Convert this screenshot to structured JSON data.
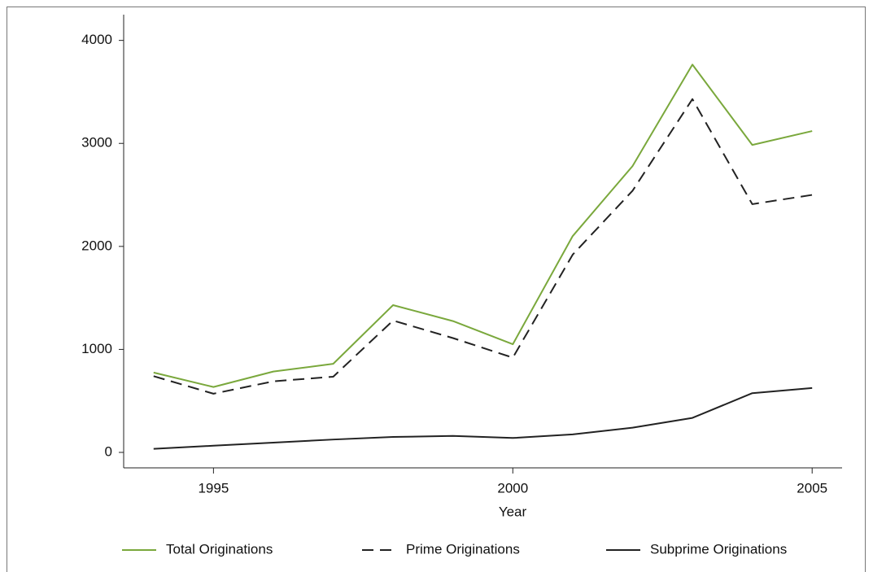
{
  "chart_data": {
    "type": "line",
    "x_label": "Year",
    "x": [
      1994,
      1995,
      1996,
      1997,
      1998,
      1999,
      2000,
      2001,
      2002,
      2003,
      2004,
      2005
    ],
    "series": [
      {
        "name": "Total Originations",
        "color": "#7aa83c",
        "dash": "solid",
        "values": [
          775,
          635,
          785,
          860,
          1430,
          1275,
          1050,
          2100,
          2780,
          3765,
          2985,
          3120
        ]
      },
      {
        "name": "Prime Originations",
        "color": "#222222",
        "dash": "dashed",
        "values": [
          740,
          570,
          690,
          735,
          1280,
          1110,
          920,
          1920,
          2540,
          3430,
          2410,
          2500
        ]
      },
      {
        "name": "Subprime Originations",
        "color": "#222222",
        "dash": "solid",
        "values": [
          35,
          65,
          95,
          125,
          150,
          160,
          140,
          175,
          240,
          335,
          575,
          625
        ]
      }
    ],
    "xlim": [
      1993.5,
      2005.5
    ],
    "xticks": [
      1995,
      2000,
      2005
    ],
    "ylim": [
      -150,
      4250
    ],
    "yticks": [
      0,
      1000,
      2000,
      3000,
      4000
    ],
    "grid": false,
    "legend": "bottom"
  }
}
